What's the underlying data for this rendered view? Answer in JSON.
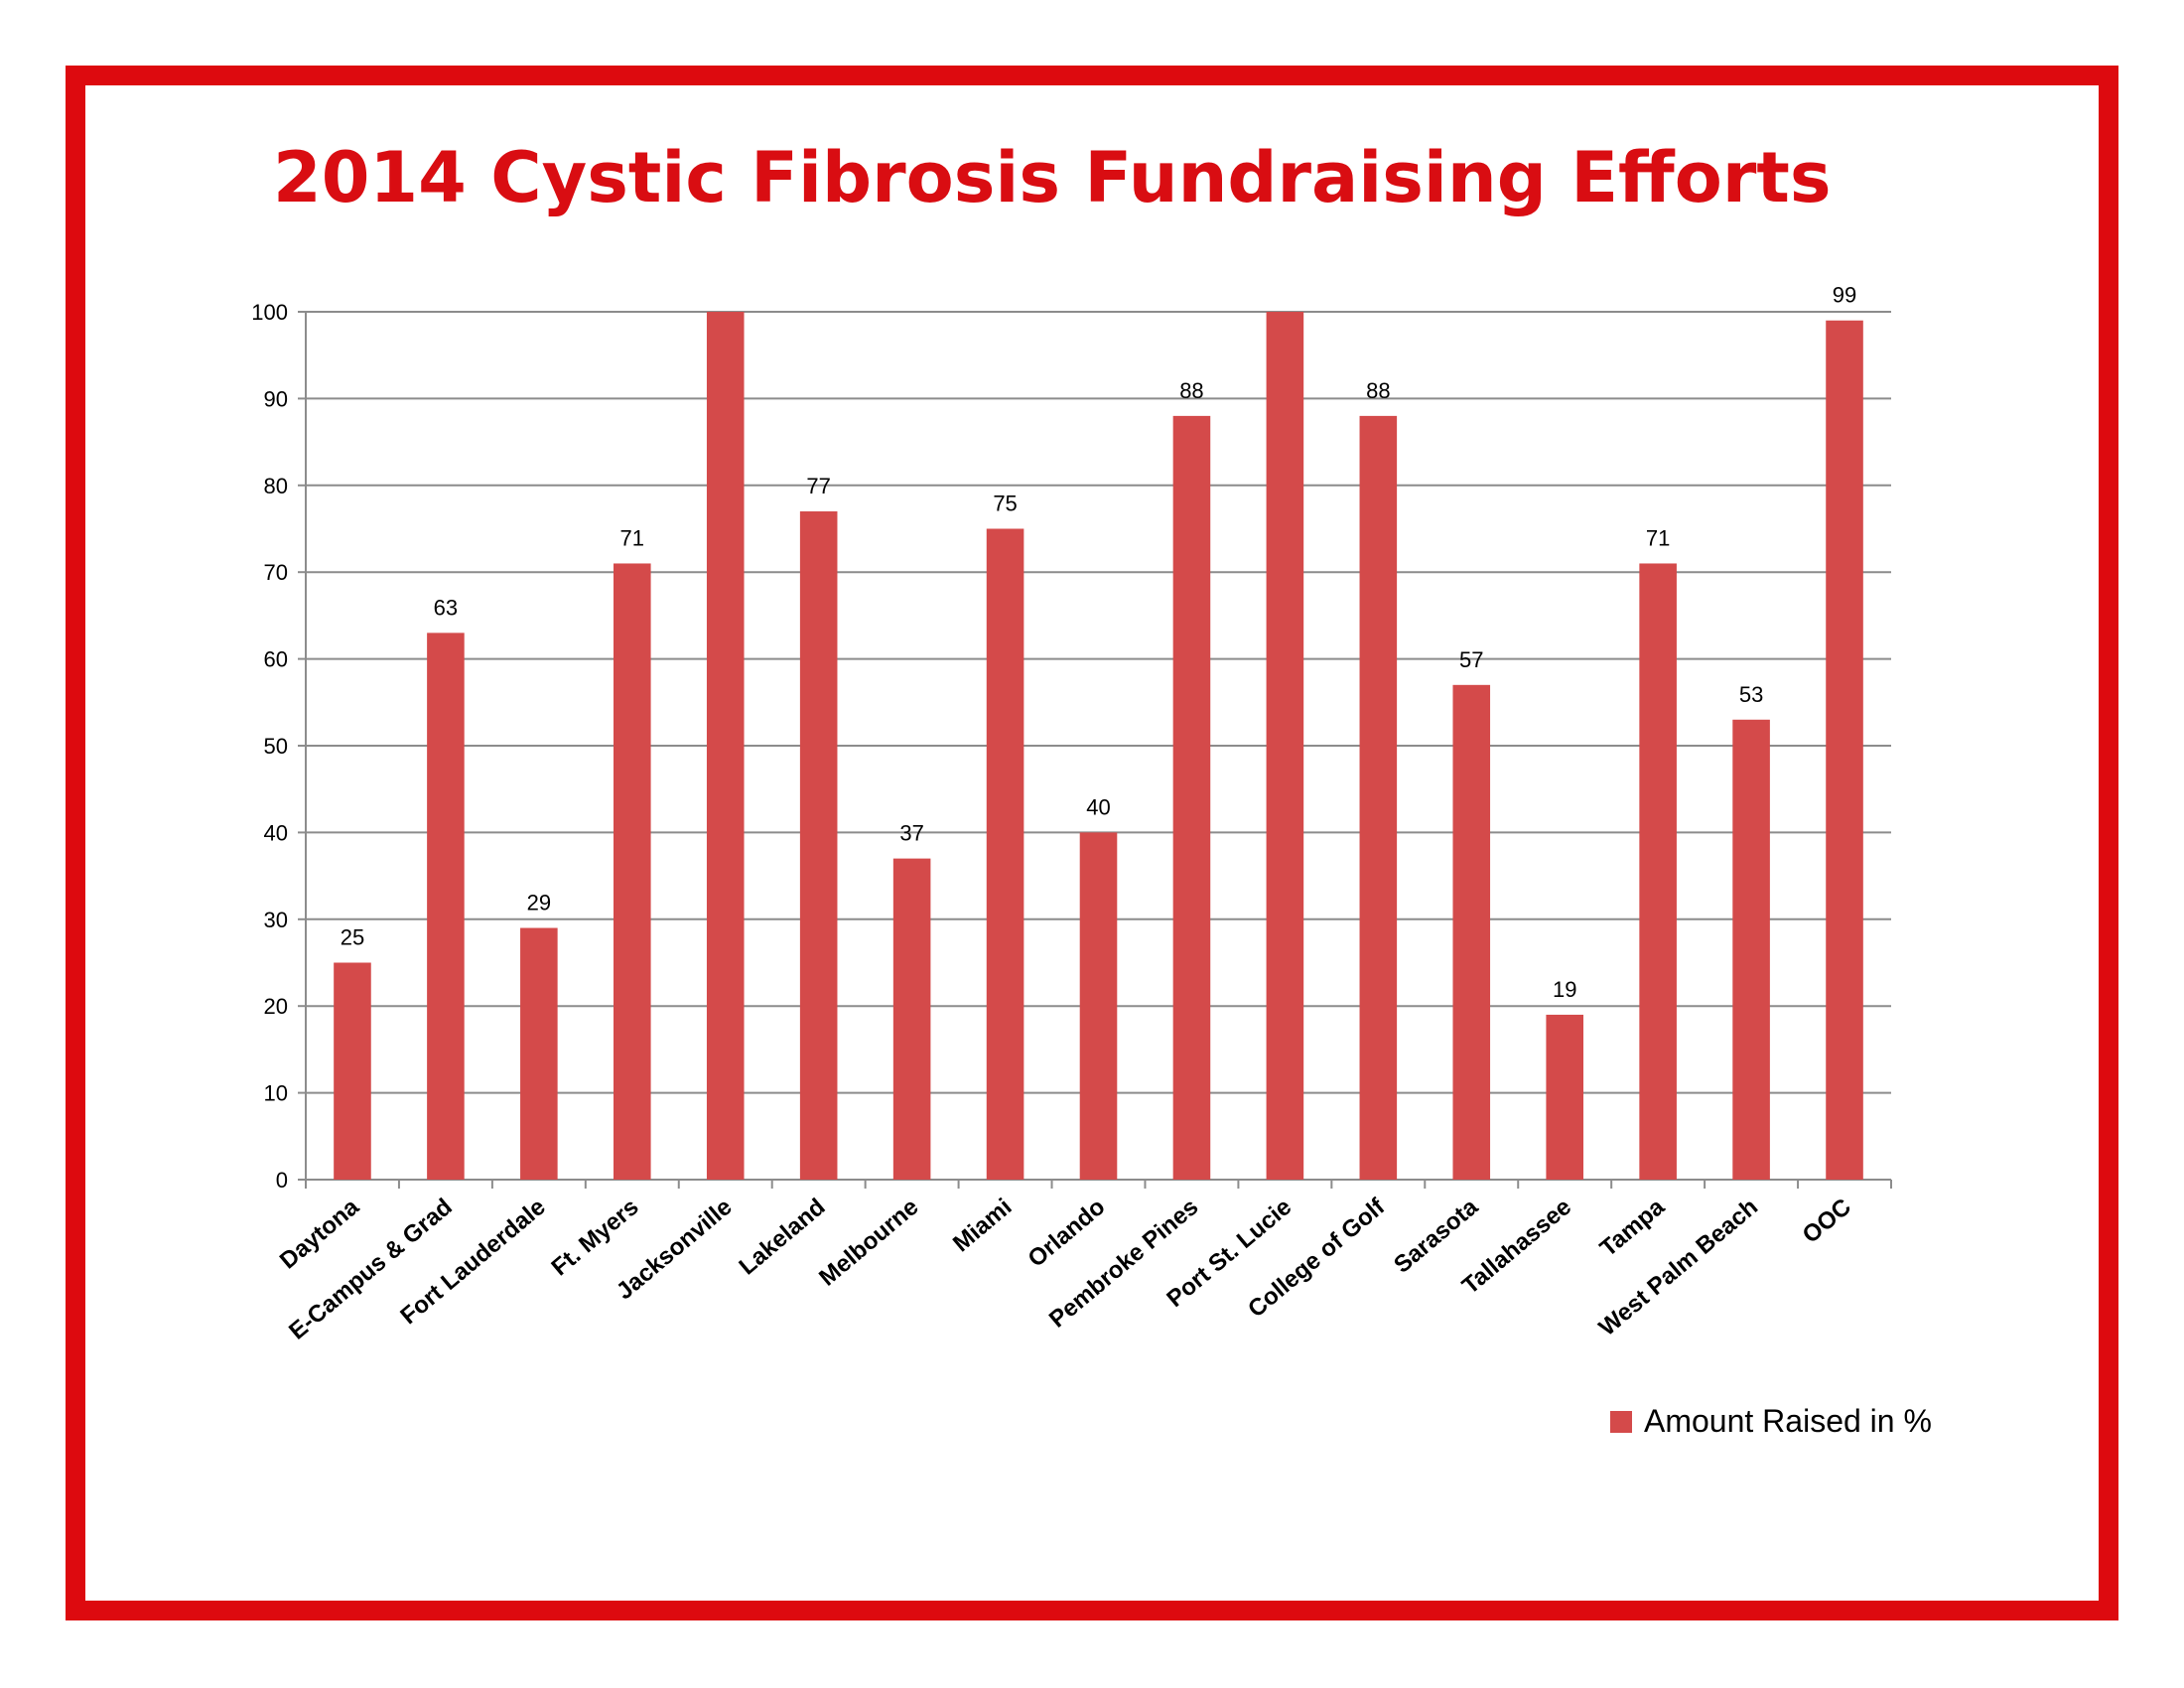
{
  "chart_data": {
    "type": "bar",
    "title": "2014 Cystic Fibrosis Fundraising Efforts",
    "categories": [
      "Daytona",
      "E-Campus & Grad",
      "Fort Lauderdale",
      "Ft. Myers",
      "Jacksonville",
      "Lakeland",
      "Melbourne",
      "Miami",
      "Orlando",
      "Pembroke Pines",
      "Port St. Lucie",
      "College of Golf",
      "Sarasota",
      "Tallahassee",
      "Tampa",
      "West Palm Beach",
      "OOC"
    ],
    "series": [
      {
        "name": "Amount Raised in %",
        "values": [
          25,
          63,
          29,
          71,
          100,
          77,
          37,
          75,
          40,
          88,
          100,
          88,
          57,
          19,
          71,
          53,
          99
        ],
        "data_labels": [
          "25",
          "63",
          "29",
          "71",
          "",
          "77",
          "37",
          "75",
          "40",
          "88",
          "",
          "88",
          "57",
          "19",
          "71",
          "53",
          "99"
        ]
      }
    ],
    "ylim": [
      0,
      100
    ],
    "yticks": [
      0,
      10,
      20,
      30,
      40,
      50,
      60,
      70,
      80,
      90,
      100
    ],
    "grid": true,
    "legend": "bottom-right",
    "colors": {
      "bar": "#d44a4a",
      "frame": "#dd0a0f",
      "title": "#d90d12",
      "grid": "#8c8c8c"
    }
  }
}
